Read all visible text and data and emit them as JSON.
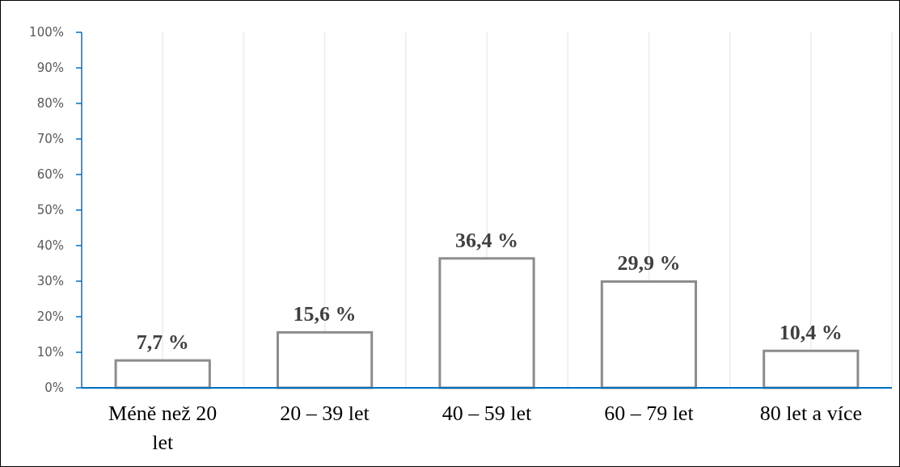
{
  "chart_data": {
    "type": "bar",
    "categories": [
      "Méně než 20 let",
      "20 – 39 let",
      "40 – 59 let",
      "60 – 79 let",
      "80 let a více"
    ],
    "values": [
      7.7,
      15.6,
      36.4,
      29.9,
      10.4
    ],
    "value_labels": [
      "7,7 %",
      "15,6 %",
      "36,4 %",
      "29,9 %",
      "10,4 %"
    ],
    "color": "#ffffff",
    "ylim": [
      0,
      100
    ],
    "yticks": [
      {
        "value": 0,
        "label": "0%"
      },
      {
        "value": 10,
        "label": "10%"
      },
      {
        "value": 20,
        "label": "20%"
      },
      {
        "value": 30,
        "label": "30%"
      },
      {
        "value": 40,
        "label": "40%"
      },
      {
        "value": 50,
        "label": "50%"
      },
      {
        "value": 60,
        "label": "60%"
      },
      {
        "value": 70,
        "label": "70%"
      },
      {
        "value": 80,
        "label": "80%"
      },
      {
        "value": 90,
        "label": "90%"
      },
      {
        "value": 100,
        "label": "100%"
      }
    ],
    "grid": "x"
  }
}
